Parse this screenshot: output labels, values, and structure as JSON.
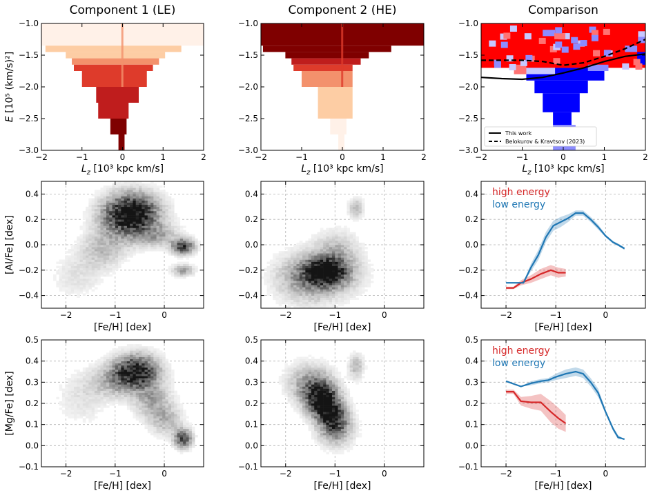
{
  "chart_data": [
    {
      "id": "p1",
      "type": "heatmap",
      "title": "Component 1 (LE)",
      "xlabel": "L_z [10³ kpc km/s]",
      "ylabel": "E [10⁵ (km/s)²]",
      "xlim": [
        -2,
        2
      ],
      "ylim": [
        -3.0,
        -1.0
      ],
      "xticks": [
        "−2",
        "−1",
        "0",
        "1",
        "2"
      ],
      "xtick_values": [
        -2,
        -1,
        0,
        1,
        2
      ],
      "yticks": [
        "−3.0",
        "−2.5",
        "−2.0",
        "−1.5",
        "−1.0"
      ],
      "ytick_values": [
        -3.0,
        -2.5,
        -2.0,
        -1.5,
        -1.0
      ],
      "colormap": "Reds",
      "fill_levels": [
        0.05,
        0.25,
        0.45,
        0.7,
        0.9,
        1.0
      ],
      "layers": [
        {
          "from": -1.35,
          "to": -1.0,
          "xmin": -2.0,
          "xmax": 2.0,
          "level": 0
        },
        {
          "from": -1.45,
          "to": -1.35,
          "xmin": -1.9,
          "xmax": 1.45,
          "level": 1
        },
        {
          "from": -1.55,
          "to": -1.45,
          "xmin": -1.4,
          "xmax": 1.05,
          "level": 1
        },
        {
          "from": -1.65,
          "to": -1.55,
          "xmin": -1.25,
          "xmax": 0.9,
          "level": 2
        },
        {
          "from": -1.75,
          "to": -1.65,
          "xmin": -1.2,
          "xmax": 0.75,
          "level": 3
        },
        {
          "from": -2.0,
          "to": -1.75,
          "xmin": -1.0,
          "xmax": 0.6,
          "level": 3
        },
        {
          "from": -2.25,
          "to": -2.0,
          "xmin": -0.65,
          "xmax": 0.4,
          "level": 4
        },
        {
          "from": -2.5,
          "to": -2.25,
          "xmin": -0.6,
          "xmax": 0.15,
          "level": 4
        },
        {
          "from": -2.75,
          "to": -2.5,
          "xmin": -0.3,
          "xmax": 0.1,
          "level": 5
        },
        {
          "from": -3.0,
          "to": -2.75,
          "xmin": -0.1,
          "xmax": 0.05,
          "level": 5
        }
      ]
    },
    {
      "id": "p2",
      "type": "heatmap",
      "title": "Component 2 (HE)",
      "xlabel": "L_z [10³ kpc km/s]",
      "xlim": [
        -2,
        2
      ],
      "ylim": [
        -3.0,
        -1.0
      ],
      "xticks": [
        "−2",
        "−1",
        "0",
        "1",
        "2"
      ],
      "xtick_values": [
        -2,
        -1,
        0,
        1,
        2
      ],
      "yticks": [
        "−3.0",
        "−2.5",
        "−2.0",
        "−1.5",
        "−1.0"
      ],
      "ytick_values": [
        -3.0,
        -2.5,
        -2.0,
        -1.5,
        -1.0
      ],
      "colormap": "Reds",
      "fill_levels": [
        0.05,
        0.25,
        0.45,
        0.7,
        0.9,
        1.0
      ],
      "layers": [
        {
          "from": -1.35,
          "to": -1.0,
          "xmin": -2.0,
          "xmax": 2.0,
          "level": 5
        },
        {
          "from": -1.45,
          "to": -1.35,
          "xmin": -1.95,
          "xmax": 1.2,
          "level": 5
        },
        {
          "from": -1.55,
          "to": -1.45,
          "xmin": -1.4,
          "xmax": 0.65,
          "level": 5
        },
        {
          "from": -1.65,
          "to": -1.55,
          "xmin": -1.25,
          "xmax": 0.45,
          "level": 4
        },
        {
          "from": -1.75,
          "to": -1.65,
          "xmin": -1.2,
          "xmax": 0.25,
          "level": 3
        },
        {
          "from": -2.0,
          "to": -1.75,
          "xmin": -1.0,
          "xmax": 0.25,
          "level": 2
        },
        {
          "from": -2.5,
          "to": -2.0,
          "xmin": -0.6,
          "xmax": 0.25,
          "level": 1
        },
        {
          "from": -2.75,
          "to": -2.5,
          "xmin": -0.3,
          "xmax": 0.1,
          "level": 0
        },
        {
          "from": -3.0,
          "to": -2.75,
          "xmin": -0.1,
          "xmax": 0.05,
          "level": 0
        }
      ]
    },
    {
      "id": "p3",
      "type": "heatmap",
      "title": "Comparison",
      "xlabel": "L_z [10³ kpc km/s]",
      "xlim": [
        -2,
        2
      ],
      "ylim": [
        -3.0,
        -1.0
      ],
      "xticks": [
        "−2",
        "−1",
        "0",
        "1",
        "2"
      ],
      "xtick_values": [
        -2,
        -1,
        0,
        1,
        2
      ],
      "yticks": [
        "−3.0",
        "−2.5",
        "−2.0",
        "−1.5",
        "−1.0"
      ],
      "ytick_values": [
        -3.0,
        -2.5,
        -2.0,
        -1.5,
        -1.0
      ],
      "colors": {
        "high": "#ff0000",
        "mid": "#ff7373",
        "low": "#0000ff",
        "lowlight": "#8c8cff",
        "pale": "#c8c8ff"
      },
      "blocks": [
        {
          "x0": -2.0,
          "x1": 2.0,
          "y0": -1.7,
          "y1": -1.0,
          "color": "high"
        },
        {
          "x0": -0.9,
          "x1": 1.0,
          "y0": -1.9,
          "y1": -1.7,
          "color": "low"
        },
        {
          "x0": -0.7,
          "x1": 0.6,
          "y0": -2.1,
          "y1": -1.9,
          "color": "low"
        },
        {
          "x0": -0.5,
          "x1": 0.4,
          "y0": -2.4,
          "y1": -2.1,
          "color": "low"
        },
        {
          "x0": -0.25,
          "x1": 0.2,
          "y0": -2.6,
          "y1": -2.4,
          "color": "low"
        },
        {
          "x0": -0.25,
          "x1": 0.3,
          "y0": -3.0,
          "y1": -2.6,
          "color": "lowlight"
        },
        {
          "x0": -0.9,
          "x1": -0.2,
          "y0": -1.8,
          "y1": -1.7,
          "color": "pale"
        },
        {
          "x0": 0.6,
          "x1": 1.1,
          "y0": -1.75,
          "y1": -1.65,
          "color": "lowlight"
        },
        {
          "x0": -1.2,
          "x1": -0.9,
          "y0": -1.8,
          "y1": -1.65,
          "color": "mid"
        },
        {
          "x0": -0.5,
          "x1": -0.2,
          "y0": -1.2,
          "y1": -1.1,
          "color": "lowlight"
        },
        {
          "x0": 1.5,
          "x1": 1.8,
          "y0": -1.45,
          "y1": -1.35,
          "color": "lowlight"
        },
        {
          "x0": 1.8,
          "x1": 2.0,
          "y0": -1.65,
          "y1": -1.45,
          "color": "low"
        }
      ],
      "series": [
        {
          "name": "This work",
          "style": "solid",
          "x": [
            -2.0,
            -1.5,
            -1.0,
            -0.5,
            0.0,
            0.5,
            1.0,
            1.5,
            2.0
          ],
          "y": [
            -1.85,
            -1.87,
            -1.88,
            -1.85,
            -1.78,
            -1.7,
            -1.6,
            -1.52,
            -1.48
          ]
        },
        {
          "name": "Belokurov & Kravtsov (2023)",
          "style": "dashed",
          "x": [
            -2.0,
            -1.5,
            -1.0,
            -0.5,
            0.0,
            0.5,
            1.0,
            1.5,
            2.0
          ],
          "y": [
            -1.58,
            -1.58,
            -1.58,
            -1.6,
            -1.66,
            -1.62,
            -1.52,
            -1.4,
            -1.25
          ]
        }
      ],
      "legend": [
        "This work",
        "Belokurov & Kravtsov (2023)"
      ]
    },
    {
      "id": "p4",
      "type": "heatmap",
      "title": "",
      "xlabel": "[Fe/H] [dex]",
      "ylabel": "[Al/Fe] [dex]",
      "xlim": [
        -2.5,
        0.8
      ],
      "ylim": [
        -0.5,
        0.5
      ],
      "xticks": [
        "−2",
        "−1",
        "0"
      ],
      "xtick_values": [
        -2,
        -1,
        0
      ],
      "yticks": [
        "−0.4",
        "−0.2",
        "0.0",
        "0.2",
        "0.4"
      ],
      "ytick_values": [
        -0.4,
        -0.2,
        0.0,
        0.2,
        0.4
      ],
      "blobs": [
        {
          "x": -0.65,
          "y": 0.25,
          "rx": 0.35,
          "ry": 0.1,
          "w": 1.0
        },
        {
          "x": -0.9,
          "y": 0.18,
          "rx": 0.35,
          "ry": 0.12,
          "w": 0.4
        },
        {
          "x": 0.35,
          "y": -0.02,
          "rx": 0.15,
          "ry": 0.04,
          "w": 0.9
        },
        {
          "x": -0.2,
          "y": 0.07,
          "rx": 0.3,
          "ry": 0.06,
          "w": 0.35
        },
        {
          "x": -1.3,
          "y": -0.05,
          "rx": 0.3,
          "ry": 0.1,
          "w": 0.25
        },
        {
          "x": -1.8,
          "y": -0.25,
          "rx": 0.35,
          "ry": 0.12,
          "w": 0.12
        },
        {
          "x": 0.35,
          "y": -0.21,
          "rx": 0.15,
          "ry": 0.03,
          "w": 0.4
        }
      ]
    },
    {
      "id": "p5",
      "type": "heatmap",
      "title": "",
      "xlabel": "[Fe/H] [dex]",
      "xlim": [
        -2.5,
        0.8
      ],
      "ylim": [
        -0.5,
        0.5
      ],
      "xticks": [
        "−2",
        "−1",
        "0"
      ],
      "xtick_values": [
        -2,
        -1,
        0
      ],
      "yticks": [
        "−0.4",
        "−0.2",
        "0.0",
        "0.2",
        "0.4"
      ],
      "ytick_values": [
        -0.4,
        -0.2,
        0.0,
        0.2,
        0.4
      ],
      "blobs": [
        {
          "x": -1.2,
          "y": -0.22,
          "rx": 0.28,
          "ry": 0.07,
          "w": 1.0
        },
        {
          "x": -1.35,
          "y": -0.25,
          "rx": 0.5,
          "ry": 0.12,
          "w": 0.45
        },
        {
          "x": -1.0,
          "y": -0.05,
          "rx": 0.3,
          "ry": 0.1,
          "w": 0.25
        },
        {
          "x": -0.6,
          "y": 0.28,
          "rx": 0.1,
          "ry": 0.05,
          "w": 0.3
        },
        {
          "x": -1.7,
          "y": -0.3,
          "rx": 0.35,
          "ry": 0.12,
          "w": 0.15
        }
      ]
    },
    {
      "id": "p6",
      "type": "line",
      "title": "",
      "xlabel": "[Fe/H] [dex]",
      "xlim": [
        -2.5,
        0.8
      ],
      "ylim": [
        -0.5,
        0.5
      ],
      "xticks": [
        "−2",
        "−1",
        "0"
      ],
      "xtick_values": [
        -2,
        -1,
        0
      ],
      "yticks": [
        "−0.4",
        "−0.2",
        "0.0",
        "0.2",
        "0.4"
      ],
      "ytick_values": [
        -0.4,
        -0.2,
        0.0,
        0.2,
        0.4
      ],
      "legend": [
        "high energy",
        "low energy"
      ],
      "series": [
        {
          "name": "high energy",
          "color": "#d62728",
          "x": [
            -2.0,
            -1.85,
            -1.7,
            -1.5,
            -1.3,
            -1.1,
            -0.95,
            -0.8
          ],
          "y": [
            -0.34,
            -0.34,
            -0.3,
            -0.27,
            -0.23,
            -0.2,
            -0.22,
            -0.22
          ],
          "err": [
            0.01,
            0.01,
            0.02,
            0.03,
            0.04,
            0.04,
            0.04,
            0.03
          ]
        },
        {
          "name": "low energy",
          "color": "#1f77b4",
          "x": [
            -2.0,
            -1.8,
            -1.65,
            -1.5,
            -1.35,
            -1.2,
            -1.05,
            -0.9,
            -0.75,
            -0.6,
            -0.45,
            -0.3,
            -0.15,
            0.0,
            0.15,
            0.25,
            0.38
          ],
          "y": [
            -0.3,
            -0.3,
            -0.3,
            -0.18,
            -0.08,
            0.06,
            0.15,
            0.18,
            0.21,
            0.25,
            0.25,
            0.2,
            0.14,
            0.07,
            0.02,
            0.0,
            -0.03
          ],
          "err": [
            0.0,
            0.0,
            0.0,
            0.03,
            0.04,
            0.04,
            0.04,
            0.04,
            0.03,
            0.02,
            0.02,
            0.02,
            0.02,
            0.01,
            0.01,
            0.01,
            0.01
          ]
        }
      ]
    },
    {
      "id": "p7",
      "type": "heatmap",
      "title": "",
      "xlabel": "[Fe/H] [dex]",
      "ylabel": "[Mg/Fe] [dex]",
      "xlim": [
        -2.5,
        0.8
      ],
      "ylim": [
        -0.1,
        0.5
      ],
      "xticks": [
        "−2",
        "−1",
        "0"
      ],
      "xtick_values": [
        -2,
        -1,
        0
      ],
      "yticks": [
        "−0.1",
        "0.0",
        "0.1",
        "0.2",
        "0.3",
        "0.4",
        "0.5"
      ],
      "ytick_values": [
        -0.1,
        0.0,
        0.1,
        0.2,
        0.3,
        0.4,
        0.5
      ],
      "blobs": [
        {
          "x": -0.6,
          "y": 0.35,
          "rx": 0.3,
          "ry": 0.05,
          "w": 1.0
        },
        {
          "x": -0.3,
          "y": 0.22,
          "rx": 0.25,
          "ry": 0.06,
          "w": 0.35
        },
        {
          "x": 0.0,
          "y": 0.12,
          "rx": 0.22,
          "ry": 0.05,
          "w": 0.3
        },
        {
          "x": 0.35,
          "y": 0.03,
          "rx": 0.12,
          "ry": 0.03,
          "w": 0.8
        },
        {
          "x": -1.0,
          "y": 0.3,
          "rx": 0.35,
          "ry": 0.05,
          "w": 0.35
        },
        {
          "x": -1.7,
          "y": 0.22,
          "rx": 0.35,
          "ry": 0.08,
          "w": 0.12
        }
      ]
    },
    {
      "id": "p8",
      "type": "heatmap",
      "title": "",
      "xlabel": "[Fe/H] [dex]",
      "xlim": [
        -2.5,
        0.8
      ],
      "ylim": [
        -0.1,
        0.5
      ],
      "xticks": [
        "−2",
        "−1",
        "0"
      ],
      "xtick_values": [
        -2,
        -1,
        0
      ],
      "yticks": [
        "−0.1",
        "0.0",
        "0.1",
        "0.2",
        "0.3",
        "0.4",
        "0.5"
      ],
      "ytick_values": [
        -0.1,
        0.0,
        0.1,
        0.2,
        0.3,
        0.4,
        0.5
      ],
      "blobs": [
        {
          "x": -1.25,
          "y": 0.2,
          "rx": 0.2,
          "ry": 0.05,
          "w": 1.0
        },
        {
          "x": -1.05,
          "y": 0.12,
          "rx": 0.2,
          "ry": 0.05,
          "w": 0.8
        },
        {
          "x": -1.4,
          "y": 0.25,
          "rx": 0.25,
          "ry": 0.06,
          "w": 0.5
        },
        {
          "x": -1.6,
          "y": 0.3,
          "rx": 0.3,
          "ry": 0.06,
          "w": 0.25
        },
        {
          "x": -0.6,
          "y": 0.37,
          "rx": 0.1,
          "ry": 0.04,
          "w": 0.3
        },
        {
          "x": -1.0,
          "y": 0.05,
          "rx": 0.25,
          "ry": 0.05,
          "w": 0.25
        }
      ]
    },
    {
      "id": "p9",
      "type": "line",
      "title": "",
      "xlabel": "[Fe/H] [dex]",
      "xlim": [
        -2.5,
        0.8
      ],
      "ylim": [
        -0.1,
        0.5
      ],
      "xticks": [
        "−2",
        "−1",
        "0"
      ],
      "xtick_values": [
        -2,
        -1,
        0
      ],
      "yticks": [
        "−0.1",
        "0.0",
        "0.1",
        "0.2",
        "0.3",
        "0.4",
        "0.5"
      ],
      "ytick_values": [
        -0.1,
        0.0,
        0.1,
        0.2,
        0.3,
        0.4,
        0.5
      ],
      "legend": [
        "high energy",
        "low energy"
      ],
      "series": [
        {
          "name": "high energy",
          "color": "#d62728",
          "x": [
            -2.0,
            -1.85,
            -1.7,
            -1.5,
            -1.3,
            -1.1,
            -0.95,
            -0.8
          ],
          "y": [
            0.255,
            0.255,
            0.21,
            0.205,
            0.205,
            0.16,
            0.13,
            0.105
          ],
          "err": [
            0.01,
            0.01,
            0.02,
            0.03,
            0.04,
            0.05,
            0.05,
            0.04
          ]
        },
        {
          "name": "low energy",
          "color": "#1f77b4",
          "x": [
            -2.0,
            -1.7,
            -1.5,
            -1.3,
            -1.15,
            -1.0,
            -0.8,
            -0.6,
            -0.45,
            -0.3,
            -0.15,
            0.0,
            0.15,
            0.25,
            0.38
          ],
          "y": [
            0.305,
            0.28,
            0.295,
            0.305,
            0.31,
            0.325,
            0.34,
            0.35,
            0.34,
            0.3,
            0.25,
            0.16,
            0.08,
            0.04,
            0.03
          ],
          "err": [
            0.0,
            0.0,
            0.01,
            0.01,
            0.01,
            0.015,
            0.02,
            0.02,
            0.02,
            0.02,
            0.02,
            0.01,
            0.01,
            0.01,
            0.0
          ]
        }
      ]
    }
  ]
}
